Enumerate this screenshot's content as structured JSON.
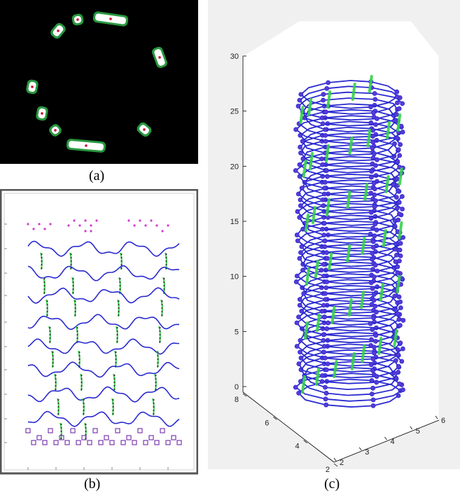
{
  "captions": {
    "a": "(a)",
    "b": "(b)",
    "c": "(c)"
  },
  "colors": {
    "background_a": "#000000",
    "segment_fill": "#ffffff",
    "segment_glow": "#2fb34a",
    "center_dot": "#d0103a",
    "track_blue": "#2a2ad0",
    "track_green": "#35d24a",
    "marker_magenta": "#d23ad2",
    "marker_purple": "#7a3ab0"
  },
  "chart_data": [
    {
      "type": "other",
      "panel": "a",
      "description_visible": "",
      "segment_count": 9
    },
    {
      "type": "line",
      "panel": "b",
      "row_count": 8
    },
    {
      "type": "line",
      "panel": "c",
      "projection": "3d",
      "zlim": [
        0,
        30
      ],
      "zticks": [
        0,
        5,
        10,
        15,
        20,
        25,
        30
      ],
      "ylim": [
        2,
        8
      ],
      "yticks": [
        2,
        4,
        6,
        8
      ],
      "xlim": [
        2,
        6
      ],
      "xticks": [
        2,
        3,
        4,
        5,
        6
      ],
      "grid": false,
      "helix_layers": 52
    }
  ]
}
